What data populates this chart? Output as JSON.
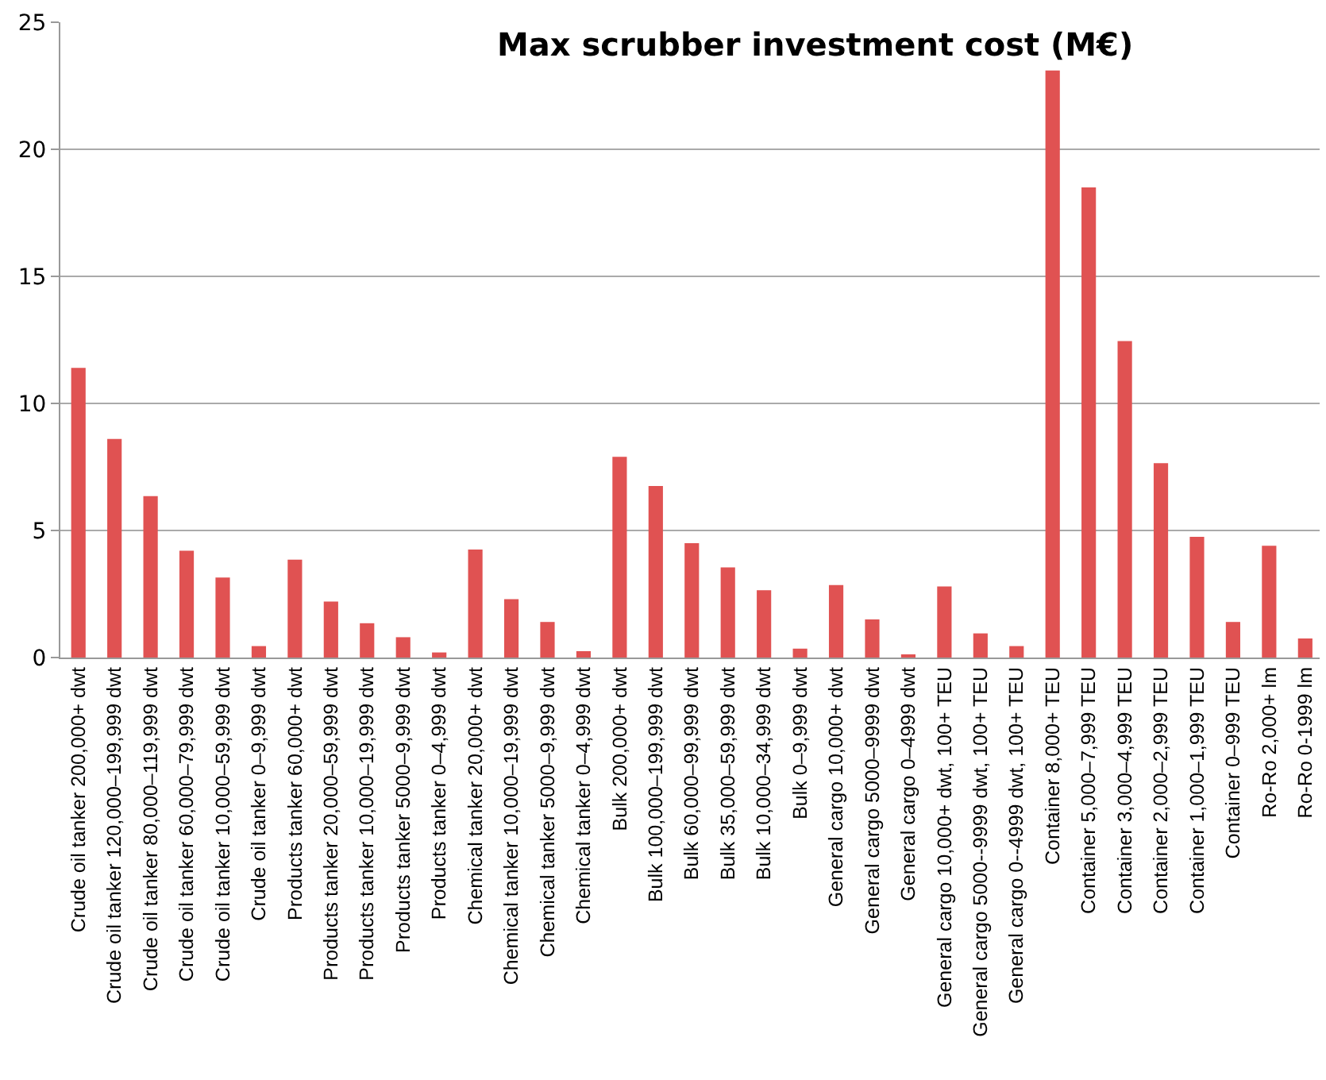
{
  "chart_data": {
    "type": "bar",
    "title": "Max scrubber investment cost (M€)",
    "categories": [
      "Crude oil tanker 200,000+ dwt",
      "Crude oil tanker 120,000–199,999 dwt",
      "Crude oil tanker 80,000–119,999 dwt",
      "Crude oil tanker 60,000–79,999 dwt",
      "Crude oil tanker 10,000–59,999 dwt",
      "Crude oil tanker 0–9,999 dwt",
      "Products tanker 60,000+ dwt",
      "Products tanker 20,000–59,999 dwt",
      "Products tanker 10,000–19,999 dwt",
      "Products tanker 5000–9,999 dwt",
      "Products tanker 0–4,999 dwt",
      "Chemical tanker 20,000+ dwt",
      "Chemical tanker 10,000–19,999 dwt",
      "Chemical tanker 5000–9,999 dwt",
      "Chemical tanker 0–4,999 dwt",
      "Bulk 200,000+ dwt",
      "Bulk 100,000–199,999 dwt",
      "Bulk 60,000–99,999 dwt",
      "Bulk 35,000–59,999 dwt",
      "Bulk 10,000–34,999 dwt",
      "Bulk 0–9,999 dwt",
      "General cargo 10,000+ dwt",
      "General cargo 5000–9999 dwt",
      "General cargo 0–4999 dwt",
      "General cargo 10,000+ dwt, 100+ TEU",
      "General cargo 5000--9999 dwt, 100+ TEU",
      "General cargo 0--4999 dwt, 100+ TEU",
      "Container 8,000+ TEU",
      "Container 5,000–7,999 TEU",
      "Container 3,000–4,999 TEU",
      "Container 2,000–2,999 TEU",
      "Container 1,000–1,999 TEU",
      "Container 0–999 TEU",
      "Ro-Ro 2,000+ lm",
      "Ro-Ro 0-1999 lm"
    ],
    "values": [
      11.4,
      8.6,
      6.35,
      4.2,
      3.15,
      0.45,
      3.85,
      2.2,
      1.35,
      0.8,
      0.2,
      4.25,
      2.3,
      1.4,
      0.25,
      7.9,
      6.75,
      4.5,
      3.55,
      2.65,
      0.35,
      2.85,
      1.5,
      0.1,
      2.8,
      0.95,
      0.45,
      23.1,
      18.5,
      12.45,
      7.65,
      4.75,
      1.4,
      4.4,
      0.75
    ],
    "color": "#e05252",
    "ylim": [
      0,
      25
    ],
    "yticks": [
      0,
      5,
      10,
      15,
      20,
      25
    ],
    "grid": "y"
  }
}
